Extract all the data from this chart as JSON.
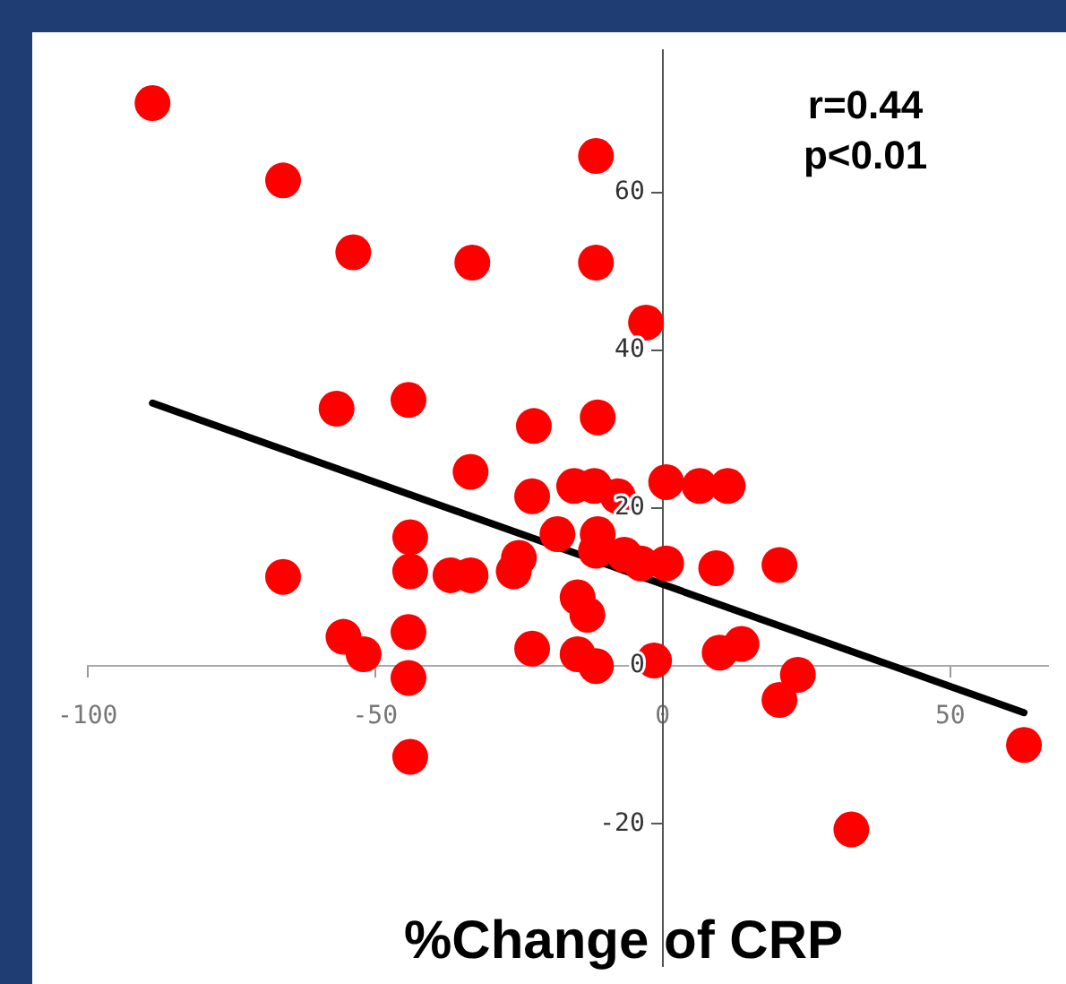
{
  "chart_data": {
    "type": "scatter",
    "xlabel": "%Change of CRP",
    "annotations": [
      "r=0.44",
      "p<0.01"
    ],
    "xlim": [
      -100,
      67
    ],
    "ylim": [
      -38,
      78
    ],
    "xticks": [
      -100,
      -50,
      0,
      50
    ],
    "yticks": [
      -20,
      0,
      20,
      40,
      60
    ],
    "grid": false,
    "legend": false,
    "marker": "circle",
    "series": [
      {
        "color": "#ff0000",
        "x": [
          -88.7,
          -66,
          -53.8,
          -33.1,
          -11.6,
          -11.6,
          -2.9,
          -56.7,
          -44.2,
          -22.4,
          -11.3,
          -33.4,
          -22.7,
          -15.4,
          -11.9,
          -7.8,
          0.6,
          6.4,
          11.3,
          -43.9,
          -66,
          -43.9,
          -36.9,
          -33.4,
          -25.9,
          -25,
          -18.3,
          -11.6,
          -6.7,
          -3.8,
          0.6,
          -14.8,
          -13.1,
          9.3,
          20.3,
          -55.5,
          -52,
          -44.2,
          -22.7,
          -14.8,
          -11.6,
          -1.5,
          9.9,
          13.7,
          23.5,
          20.3,
          -44.2,
          -43.9,
          32.8,
          62.8,
          -11.3
        ],
        "values": [
          71.3,
          61.5,
          52.4,
          51.1,
          64.6,
          51.1,
          43.5,
          32.6,
          33.7,
          30.4,
          31.5,
          24.6,
          21.5,
          22.8,
          22.8,
          21.5,
          23.3,
          22.8,
          22.8,
          16.3,
          11.3,
          12,
          11.5,
          11.5,
          12,
          13.7,
          16.7,
          14.6,
          14.1,
          13,
          13,
          8.7,
          6.5,
          12.4,
          12.8,
          3.7,
          1.5,
          4.3,
          2.2,
          1.5,
          0,
          0.7,
          1.7,
          2.8,
          -1.1,
          -4.3,
          -1.5,
          -11.5,
          -20.7,
          -10,
          16.7
        ]
      },
      {
        "type": "line",
        "color": "#000000",
        "marker": "none",
        "x": [
          -88.7,
          62.8
        ],
        "values": [
          33.3,
          -5.9
        ]
      }
    ]
  }
}
